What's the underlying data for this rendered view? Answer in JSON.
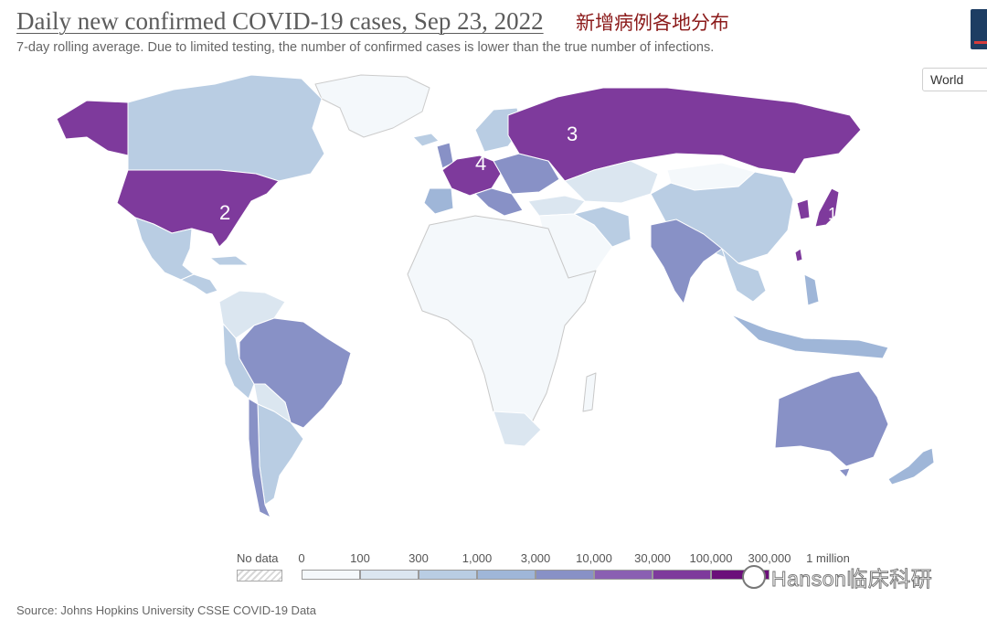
{
  "header": {
    "title": "Daily new confirmed COVID-19 cases, Sep 23, 2022",
    "cn_title": "新增病例各地分布",
    "subtitle": "7-day rolling average. Due to limited testing, the number of confirmed cases is lower than the true number of infections."
  },
  "controls": {
    "entity_selector": "World"
  },
  "map": {
    "colors": {
      "no_data": "hatched",
      "b0": "#f4f8fb",
      "b1": "#dbe6f0",
      "b2": "#b9cde3",
      "b3": "#9fb6d8",
      "b4": "#8891c6",
      "b5": "#8a5fb2",
      "b6": "#7e3a9c",
      "b7": "#6b0f7a"
    },
    "rank_labels": [
      "2",
      "3",
      "4",
      "1"
    ]
  },
  "legend": {
    "no_data_label": "No data",
    "ticks": [
      "0",
      "100",
      "300",
      "1,000",
      "3,000",
      "10,000",
      "30,000",
      "100,000",
      "300,000",
      "1 million"
    ],
    "bin_colors": [
      "#f4f8fb",
      "#dbe6f0",
      "#b9cde3",
      "#9fb6d8",
      "#8891c6",
      "#8a5fb2",
      "#7e3a9c",
      "#6b0f7a"
    ]
  },
  "watermark": "Hanson临床科研",
  "source": "Source: Johns Hopkins University CSSE COVID-19 Data"
}
